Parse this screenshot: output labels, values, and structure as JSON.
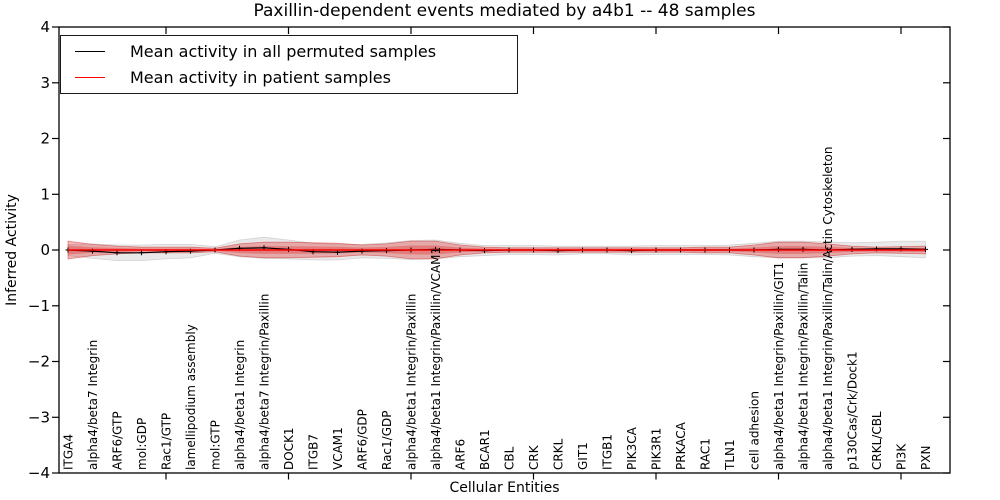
{
  "figure": {
    "background": "#ffffff",
    "plot_border_color": "#000000"
  },
  "chart_data": {
    "type": "line",
    "title": "Paxillin-dependent events mediated by a4b1 -- 48 samples",
    "xlabel": "Cellular Entities",
    "ylabel": "Inferred Activity",
    "ylim": [
      -4,
      4
    ],
    "yticks": [
      4,
      3,
      2,
      1,
      0,
      -1,
      -2,
      -3,
      -4
    ],
    "xtick_positions": [
      5,
      10,
      15,
      20,
      25,
      30,
      35
    ],
    "grid": false,
    "legend_position": "upper-left",
    "categories": [
      "ITGA4",
      "alpha4/beta7 Integrin",
      "ARF6/GTP",
      "mol:GDP",
      "Rac1/GTP",
      "lamellipodium assembly",
      "mol:GTP",
      "alpha4/beta1 Integrin",
      "alpha4/beta7 Integrin/Paxillin",
      "DOCK1",
      "ITGB7",
      "VCAM1",
      "ARF6/GDP",
      "Rac1/GDP",
      "alpha4/beta1 Integrin/Paxillin",
      "alpha4/beta1 Integrin/Paxillin/VCAM1",
      "ARF6",
      "BCAR1",
      "CBL",
      "CRK",
      "CRKL",
      "GIT1",
      "ITGB1",
      "PIK3CA",
      "PIK3R1",
      "PRKACA",
      "RAC1",
      "TLN1",
      "cell adhesion",
      "alpha4/beta1 Integrin/Paxillin/GIT1",
      "alpha4/beta1 Integrin/Paxillin/Talin",
      "alpha4/beta1 Integrin/Paxillin/Talin/Actin Cytoskeleton",
      "p130Cas/Crk/Dock1",
      "CRKL/CBL",
      "PI3K",
      "PXN"
    ],
    "series": [
      {
        "name": "Mean activity in all permuted samples",
        "color": "#000000",
        "marker": "plus",
        "band_color": "#999999",
        "band_opacity": 0.22,
        "mean": [
          0.0,
          -0.02,
          -0.05,
          -0.05,
          -0.03,
          -0.02,
          0.0,
          0.03,
          0.04,
          0.01,
          -0.03,
          -0.04,
          -0.02,
          -0.01,
          0.0,
          0.01,
          0.0,
          -0.01,
          0.0,
          0.0,
          -0.01,
          0.0,
          0.0,
          -0.01,
          0.0,
          0.0,
          0.0,
          0.0,
          0.0,
          0.01,
          0.01,
          0.0,
          0.01,
          0.02,
          0.02,
          0.01
        ],
        "std": [
          0.1,
          0.13,
          0.14,
          0.14,
          0.13,
          0.12,
          0.06,
          0.15,
          0.19,
          0.17,
          0.15,
          0.14,
          0.12,
          0.14,
          0.17,
          0.17,
          0.12,
          0.09,
          0.08,
          0.08,
          0.08,
          0.07,
          0.07,
          0.08,
          0.08,
          0.08,
          0.08,
          0.09,
          0.12,
          0.15,
          0.15,
          0.14,
          0.12,
          0.12,
          0.14,
          0.15
        ]
      },
      {
        "name": "Mean activity in patient samples",
        "color": "#ff0000",
        "marker": "none",
        "band_color": "#dd2222",
        "band_opacity": 0.32,
        "mean": [
          0,
          0,
          0,
          0,
          0,
          0,
          0,
          0,
          0,
          0,
          0,
          0,
          0,
          0,
          0,
          0,
          0,
          0,
          0,
          0,
          0,
          0,
          0,
          0,
          0,
          0,
          0,
          0,
          0,
          0,
          0,
          0,
          0,
          0,
          0,
          0
        ],
        "std": [
          0.16,
          0.1,
          0.07,
          0.05,
          0.05,
          0.05,
          0.03,
          0.11,
          0.14,
          0.14,
          0.13,
          0.12,
          0.09,
          0.11,
          0.16,
          0.16,
          0.09,
          0.05,
          0.04,
          0.04,
          0.04,
          0.04,
          0.04,
          0.04,
          0.04,
          0.04,
          0.05,
          0.05,
          0.09,
          0.14,
          0.14,
          0.11,
          0.07,
          0.05,
          0.06,
          0.07
        ]
      }
    ]
  }
}
